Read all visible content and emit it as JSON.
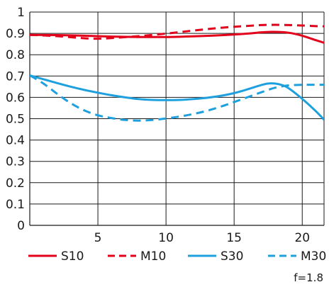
{
  "chart_data": {
    "type": "line",
    "title": "",
    "xlabel": "",
    "ylabel": "",
    "xlim": [
      0,
      21.6
    ],
    "ylim": [
      0,
      1
    ],
    "x_ticks": [
      5,
      10,
      15,
      20
    ],
    "y_ticks": [
      0,
      0.1,
      0.2,
      0.3,
      0.4,
      0.5,
      0.6,
      0.7,
      0.8,
      0.9,
      1
    ],
    "y_tick_labels": [
      "0",
      "0.1",
      "0.2",
      "0.3",
      "0.4",
      "0.5",
      "0.6",
      "0.7",
      "0.8",
      "0.9",
      "1"
    ],
    "x_tick_labels": [
      "5",
      "10",
      "15",
      "20"
    ],
    "grid": true,
    "legend_position": "bottom",
    "series": [
      {
        "name": "S10",
        "color": "#e3001b",
        "dashed": false,
        "x": [
          0,
          2,
          4,
          6,
          8,
          10,
          12,
          14,
          16,
          17,
          18,
          19,
          20,
          21,
          21.6
        ],
        "y": [
          0.893,
          0.892,
          0.889,
          0.885,
          0.883,
          0.883,
          0.886,
          0.891,
          0.899,
          0.905,
          0.907,
          0.903,
          0.889,
          0.868,
          0.856
        ]
      },
      {
        "name": "M10",
        "color": "#e3001b",
        "dashed": true,
        "x": [
          0,
          2,
          4,
          5,
          6,
          8,
          10,
          12,
          14,
          16,
          17,
          18,
          19,
          20,
          21,
          21.6
        ],
        "y": [
          0.893,
          0.887,
          0.877,
          0.875,
          0.878,
          0.887,
          0.899,
          0.913,
          0.926,
          0.935,
          0.939,
          0.94,
          0.939,
          0.937,
          0.934,
          0.933
        ]
      },
      {
        "name": "S30",
        "color": "#1ea0de",
        "dashed": false,
        "x": [
          0,
          1,
          2,
          3,
          4,
          5,
          6,
          7,
          8,
          9,
          10,
          11,
          12,
          13,
          14,
          15,
          16,
          17,
          17.5,
          18,
          18.5,
          19,
          20,
          21,
          21.6
        ],
        "y": [
          0.703,
          0.685,
          0.667,
          0.65,
          0.635,
          0.622,
          0.61,
          0.6,
          0.592,
          0.588,
          0.587,
          0.588,
          0.592,
          0.598,
          0.607,
          0.62,
          0.638,
          0.658,
          0.665,
          0.665,
          0.658,
          0.643,
          0.593,
          0.535,
          0.495
        ]
      },
      {
        "name": "M30",
        "color": "#1ea0de",
        "dashed": true,
        "x": [
          0,
          1,
          2,
          3,
          4,
          5,
          6,
          7,
          8,
          9,
          10,
          11,
          12,
          13,
          14,
          15,
          16,
          17,
          18,
          19,
          20,
          21,
          21.6
        ],
        "y": [
          0.703,
          0.665,
          0.617,
          0.573,
          0.539,
          0.516,
          0.503,
          0.494,
          0.491,
          0.494,
          0.501,
          0.51,
          0.522,
          0.537,
          0.556,
          0.578,
          0.601,
          0.624,
          0.645,
          0.656,
          0.659,
          0.659,
          0.659
        ]
      }
    ],
    "annotation": "f=1.8"
  }
}
